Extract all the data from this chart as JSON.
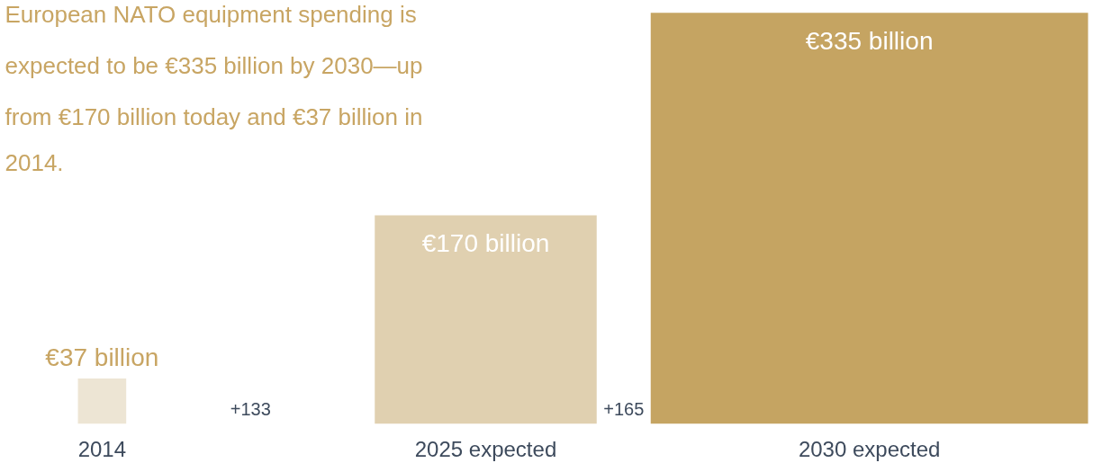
{
  "chart_data": {
    "type": "bar",
    "title": "European NATO equipment spending is expected to be €335 billion by 2030—up from €170 billion today and €37 billion in 2014.",
    "categories": [
      "2014",
      "2025 expected",
      "2030 expected"
    ],
    "values": [
      37,
      170,
      335
    ],
    "colors": [
      "#ede5d4",
      "#e0d0b0",
      "#c5a462"
    ],
    "value_labels": [
      "€37 billion",
      "€170 billion",
      "€335 billion"
    ],
    "annotations": [
      "+133",
      "+165"
    ],
    "grid": false
  }
}
